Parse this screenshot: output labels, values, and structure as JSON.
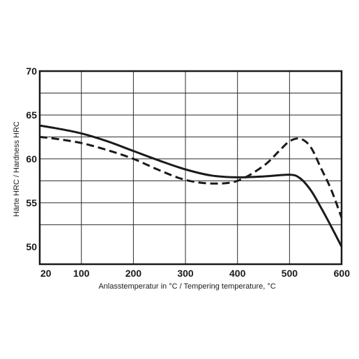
{
  "chart_data": {
    "type": "line",
    "title": "",
    "xlabel": "Anlasstemperatur in °C / Tempering temperature, °C",
    "ylabel": "Härte HRC / Hardness HRC",
    "xlim": [
      20,
      600
    ],
    "ylim": [
      48,
      70
    ],
    "grid": true,
    "x_ticks": [
      20,
      100,
      200,
      300,
      400,
      500,
      600
    ],
    "x_tick_labels": [
      "20",
      "100",
      "200",
      "300",
      "400",
      "500",
      "600"
    ],
    "x_grid": [
      100,
      200,
      300,
      400,
      500
    ],
    "y_ticks": [
      50,
      55,
      60,
      65,
      70
    ],
    "y_tick_labels": [
      "50",
      "55",
      "60",
      "65",
      "70"
    ],
    "y_grid": [
      52.5,
      55,
      57.5,
      60,
      62.5,
      65,
      67.5
    ],
    "series": [
      {
        "style": "solid",
        "color": "#1a1a1a",
        "x": [
          20,
          50,
          100,
          150,
          200,
          250,
          300,
          350,
          400,
          450,
          500,
          520,
          540,
          560,
          580,
          600
        ],
        "y": [
          63.8,
          63.5,
          62.9,
          62.0,
          60.9,
          59.8,
          58.8,
          58.1,
          57.9,
          58.0,
          58.2,
          57.8,
          56.5,
          54.5,
          52.3,
          50.0
        ]
      },
      {
        "style": "dashed",
        "color": "#1a1a1a",
        "x": [
          20,
          50,
          100,
          150,
          200,
          250,
          300,
          350,
          400,
          450,
          480,
          500,
          520,
          540,
          560,
          580,
          600
        ],
        "y": [
          62.5,
          62.3,
          61.8,
          61.0,
          60.0,
          58.7,
          57.6,
          57.2,
          57.5,
          59.2,
          60.9,
          62.0,
          62.3,
          61.4,
          59.0,
          56.5,
          53.3
        ]
      }
    ]
  }
}
